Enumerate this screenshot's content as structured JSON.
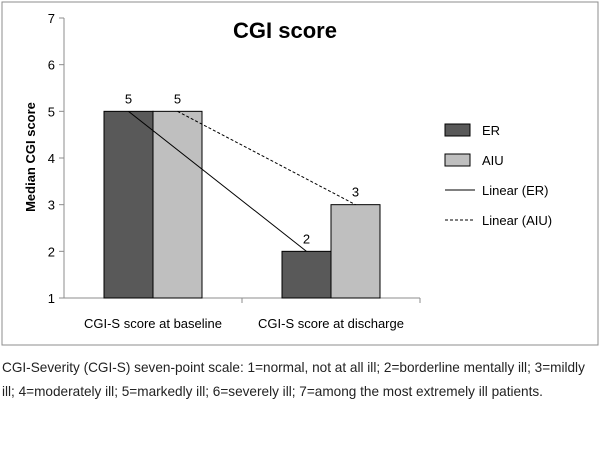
{
  "chart_data": {
    "type": "bar",
    "title": "CGI score",
    "xlabel": "",
    "ylabel": "Median CGI score",
    "ylim": [
      1,
      7
    ],
    "yticks": [
      "1",
      "2",
      "3",
      "4",
      "5",
      "6",
      "7"
    ],
    "grid": false,
    "legend_position": "right",
    "categories": [
      "CGI-S score at baseline",
      "CGI-S score at discharge"
    ],
    "series": [
      {
        "name": "ER",
        "values": [
          5,
          2
        ],
        "data_labels": [
          "5",
          "2"
        ],
        "color": "#595959"
      },
      {
        "name": "AIU",
        "values": [
          5,
          3
        ],
        "data_labels": [
          "5",
          "3"
        ],
        "color": "#bfbfbf"
      }
    ],
    "trendlines": [
      {
        "name": "Linear (ER)",
        "series": "ER",
        "style": "solid",
        "from": 5,
        "to": 2
      },
      {
        "name": "Linear (AIU)",
        "series": "AIU",
        "style": "dashed",
        "from": 5,
        "to": 3
      }
    ]
  },
  "caption": "CGI-Severity (CGI-S) seven-point scale: 1=normal, not at all ill; 2=borderline mentally ill; 3=mildly ill; 4=moderately ill; 5=markedly ill; 6=severely ill; 7=among the most extremely ill patients."
}
